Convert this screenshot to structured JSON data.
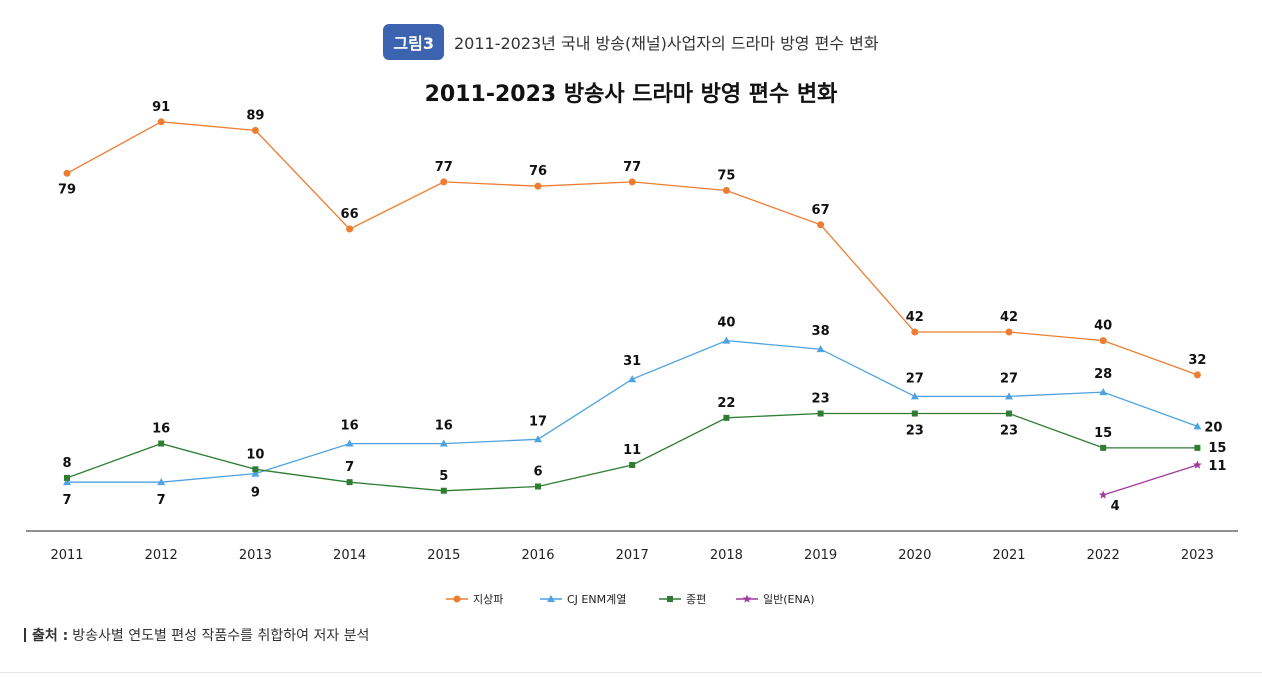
{
  "figure": {
    "badge": "그림3",
    "caption": "2011-2023년 국내 방송(채널)사업자의 드라마 방영 편수 변화"
  },
  "source": {
    "label": "출처 :",
    "text": "방송사별 연도별 편성 작품수를 취합하여 저자 분석"
  },
  "colors": {
    "badge": "#3b63b0",
    "terrestrial": "#ed7d31",
    "cj_enm": "#4ea3e0",
    "jongpyeon": "#2e7d32",
    "general_ena": "#a23b9e"
  },
  "chart_data": {
    "type": "line",
    "title": "2011-2023 방송사 드라마 방영 편수 변화",
    "xlabel": "",
    "ylabel": "",
    "categories": [
      "2011",
      "2012",
      "2013",
      "2014",
      "2015",
      "2016",
      "2017",
      "2018",
      "2019",
      "2020",
      "2021",
      "2022",
      "2023"
    ],
    "ylim": [
      0,
      100
    ],
    "grid": false,
    "legend_position": "bottom",
    "series": [
      {
        "name": "지상파",
        "color": "#ed7d31",
        "marker": "circle",
        "values": [
          79,
          91,
          89,
          66,
          77,
          76,
          77,
          75,
          67,
          42,
          42,
          40,
          32
        ]
      },
      {
        "name": "CJ ENM계열",
        "color": "#4ea3e0",
        "marker": "triangle",
        "values": [
          7,
          7,
          9,
          16,
          16,
          17,
          31,
          40,
          38,
          27,
          27,
          28,
          20
        ]
      },
      {
        "name": "종편",
        "color": "#2e7d32",
        "marker": "square",
        "values": [
          8,
          16,
          10,
          7,
          5,
          6,
          11,
          22,
          23,
          23,
          23,
          15,
          15
        ]
      },
      {
        "name": "일반(ENA)",
        "color": "#a23b9e",
        "marker": "star",
        "values": [
          null,
          null,
          null,
          null,
          null,
          null,
          null,
          null,
          null,
          null,
          null,
          4,
          11
        ]
      }
    ]
  }
}
